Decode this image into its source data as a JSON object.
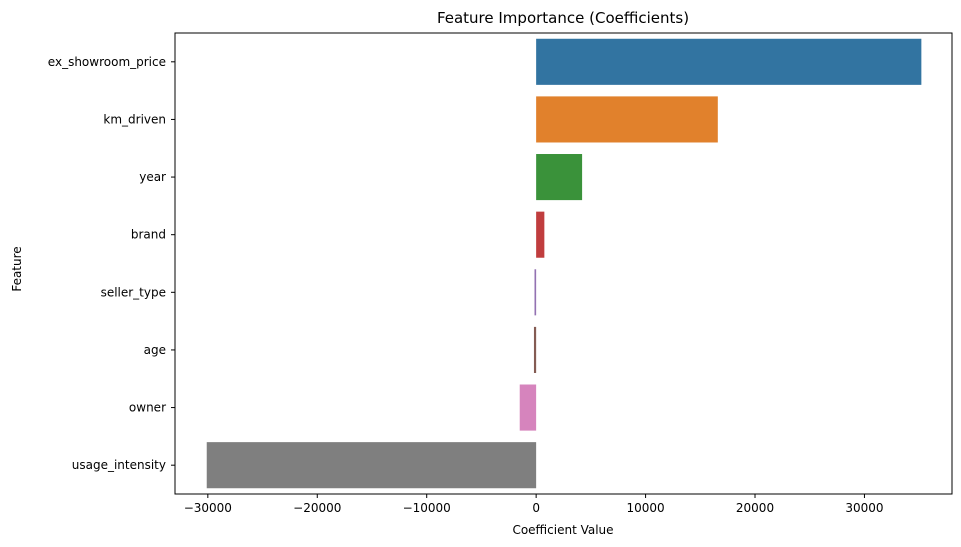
{
  "chart_data": {
    "type": "bar",
    "orientation": "horizontal",
    "title": "Feature Importance (Coefficients)",
    "xlabel": "Coefficient Value",
    "ylabel": "Feature",
    "xlim": [
      -33000,
      38000
    ],
    "xticks": [
      -30000,
      -20000,
      -10000,
      0,
      10000,
      20000,
      30000
    ],
    "xtick_labels": [
      "−30000",
      "−20000",
      "−10000",
      "0",
      "10000",
      "20000",
      "30000"
    ],
    "grid": false,
    "categories": [
      "ex_showroom_price",
      "km_driven",
      "year",
      "brand",
      "seller_type",
      "age",
      "owner",
      "usage_intensity"
    ],
    "values": [
      35200,
      16600,
      4200,
      750,
      -150,
      -200,
      -1500,
      -30100
    ],
    "colors": [
      "#3274a1",
      "#e1812c",
      "#3a923a",
      "#c03d3e",
      "#9372b2",
      "#845b53",
      "#d684bd",
      "#7f7f7f"
    ]
  }
}
